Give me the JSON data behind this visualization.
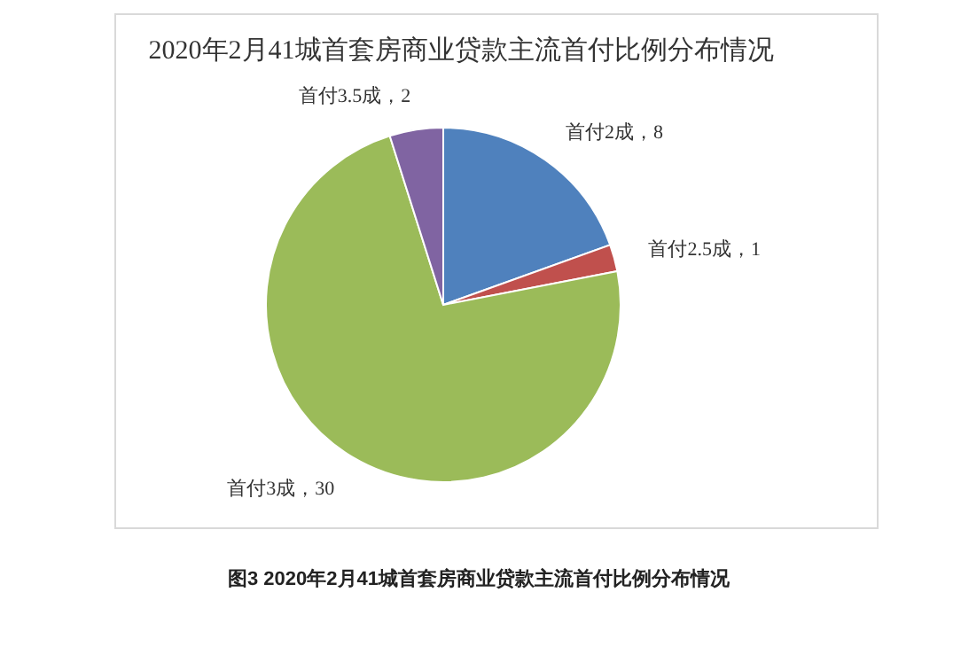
{
  "chart_data": {
    "type": "pie",
    "title": "2020年2月41城首套房商业贷款主流首付比例分布情况",
    "categories": [
      "首付2成",
      "首付2.5成",
      "首付3成",
      "首付3.5成"
    ],
    "values": [
      8,
      1,
      30,
      2
    ],
    "colors": [
      "#4f81bd",
      "#c0504d",
      "#9bbb59",
      "#8064a2"
    ],
    "value_labels": [
      "，8",
      "，1",
      "，30",
      "，2"
    ],
    "annotations": [
      "图3 2020年2月41城首套房商业贷款主流首付比例分布情况"
    ]
  }
}
